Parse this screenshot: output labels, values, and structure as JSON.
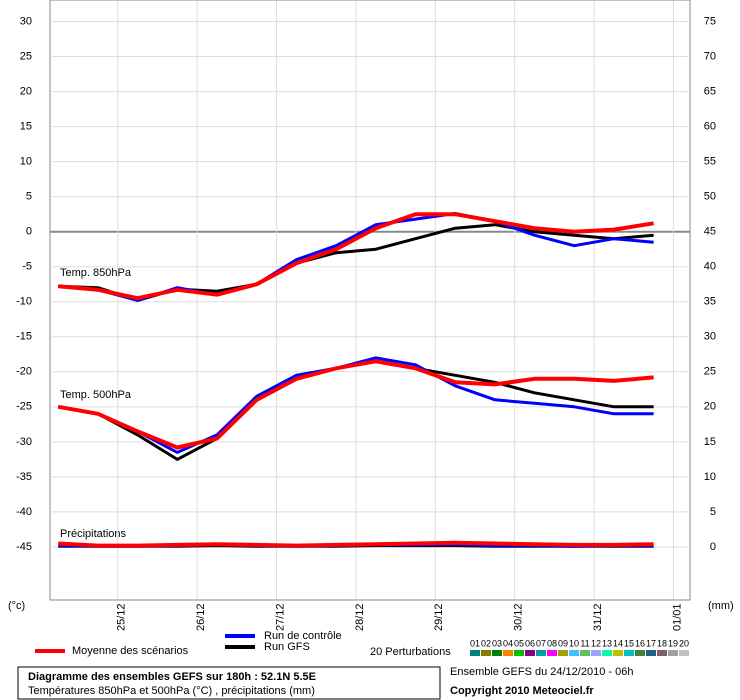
{
  "chart_data": {
    "type": "line",
    "title": "Diagramme des ensembles GEFS sur 180h : 52.1N 5.5E",
    "subtitle": "Températures 850hPa et 500hPa (°C) , précipitations (mm)",
    "run_label": "Ensemble GEFS du 24/12/2010 - 06h",
    "copyright": "Copyright 2010 Meteociel.fr",
    "y_unit": "(°c)",
    "y2_unit": "(mm)",
    "annotations": [
      "Temp. 850hPa",
      "Temp. 500hPa",
      "Précipitations"
    ],
    "x": [
      0,
      12,
      24,
      36,
      48,
      60,
      72,
      84,
      96,
      108,
      120,
      132,
      144,
      156,
      168,
      180
    ],
    "xlim": [
      -2.5,
      191
    ],
    "xticks": [
      {
        "value": 18,
        "label": "25/12"
      },
      {
        "value": 42,
        "label": "26/12"
      },
      {
        "value": 66,
        "label": "27/12"
      },
      {
        "value": 90,
        "label": "28/12"
      },
      {
        "value": 114,
        "label": "29/12"
      },
      {
        "value": 138,
        "label": "30/12"
      },
      {
        "value": 162,
        "label": "31/12"
      },
      {
        "value": 186,
        "label": "01/01"
      }
    ],
    "ylim": [
      -52.5,
      33
    ],
    "yticks": [
      -45,
      -40,
      -35,
      -30,
      -25,
      -20,
      -15,
      -10,
      -5,
      0,
      5,
      10,
      15,
      20,
      25,
      30
    ],
    "y2lim": [
      -7.5,
      78
    ],
    "y2ticks": [
      0,
      5,
      10,
      15,
      20,
      25,
      30,
      35,
      40,
      45,
      50,
      55,
      60,
      65,
      70,
      75
    ],
    "grid": true,
    "series": [
      {
        "name": "Moyenne des scénarios",
        "color": "#ff0000",
        "t850": [
          -7.8,
          -8.3,
          -9.5,
          -8.3,
          -9.0,
          -7.5,
          -4.5,
          -2.5,
          0.5,
          2.5,
          2.5,
          1.5,
          0.5,
          0,
          0.3,
          1.2
        ],
        "t500": [
          -25,
          -26,
          -28.5,
          -30.8,
          -29.5,
          -24,
          -21,
          -19.5,
          -18.5,
          -19.5,
          -21.5,
          -21.8,
          -21,
          -21,
          -21.3,
          -20.8
        ],
        "precip": [
          0.5,
          0.2,
          0.2,
          0.3,
          0.4,
          0.3,
          0.2,
          0.3,
          0.4,
          0.5,
          0.6,
          0.5,
          0.4,
          0.3,
          0.3,
          0.4
        ]
      },
      {
        "name": "Run de contrôle",
        "color": "#0000ff",
        "t850": [
          -7.8,
          -8.3,
          -9.8,
          -8.0,
          -9.0,
          -7.5,
          -4.0,
          -2.0,
          1.0,
          1.8,
          2.6,
          1.5,
          -0.5,
          -2.0,
          -1.0,
          -1.5
        ],
        "t500": [
          -25,
          -26,
          -28.5,
          -31.5,
          -29,
          -23.5,
          -20.5,
          -19.5,
          -18,
          -19,
          -22,
          -24,
          -24.5,
          -25,
          -26,
          -26
        ],
        "precip": [
          0.2,
          0.1,
          0.1,
          0.2,
          0.3,
          0.2,
          0.1,
          0.2,
          0.3,
          0.3,
          0.4,
          0.2,
          0.2,
          0.1,
          0.2,
          0.2
        ]
      },
      {
        "name": "Run GFS",
        "color": "#000000",
        "t850": [
          -7.8,
          -8.0,
          -9.8,
          -8.2,
          -8.5,
          -7.5,
          -4.5,
          -3.0,
          -2.5,
          -1.0,
          0.5,
          1.0,
          0,
          -0.5,
          -1.0,
          -0.5
        ],
        "t500": [
          -25,
          -26,
          -29,
          -32.5,
          -29.5,
          -24,
          -20.5,
          -19.5,
          -18.5,
          -19.5,
          -20.5,
          -21.5,
          -23,
          -24,
          -25,
          -25
        ],
        "precip": [
          0.1,
          0.1,
          0.1,
          0.1,
          0.2,
          0.1,
          0.1,
          0.1,
          0.2,
          0.2,
          0.2,
          0.1,
          0.1,
          0.1,
          0.1,
          0.1
        ]
      }
    ],
    "perturbations": {
      "label": "20 Perturbations",
      "members": [
        {
          "name": "01",
          "color": "#008080"
        },
        {
          "name": "02",
          "color": "#808000"
        },
        {
          "name": "03",
          "color": "#008000"
        },
        {
          "name": "04",
          "color": "#ff8000"
        },
        {
          "name": "05",
          "color": "#00c000"
        },
        {
          "name": "06",
          "color": "#800080"
        },
        {
          "name": "07",
          "color": "#00a0a0"
        },
        {
          "name": "08",
          "color": "#ff00ff"
        },
        {
          "name": "09",
          "color": "#a0a000"
        },
        {
          "name": "10",
          "color": "#40c0ff"
        },
        {
          "name": "11",
          "color": "#60c060"
        },
        {
          "name": "12",
          "color": "#a0a0ff"
        },
        {
          "name": "13",
          "color": "#00ffa0"
        },
        {
          "name": "14",
          "color": "#c0c000"
        },
        {
          "name": "15",
          "color": "#00c0c0"
        },
        {
          "name": "16",
          "color": "#408040"
        },
        {
          "name": "17",
          "color": "#206080"
        },
        {
          "name": "18",
          "color": "#806060"
        },
        {
          "name": "19",
          "color": "#a0a0a0"
        },
        {
          "name": "20",
          "color": "#c0c0c0"
        }
      ]
    }
  }
}
